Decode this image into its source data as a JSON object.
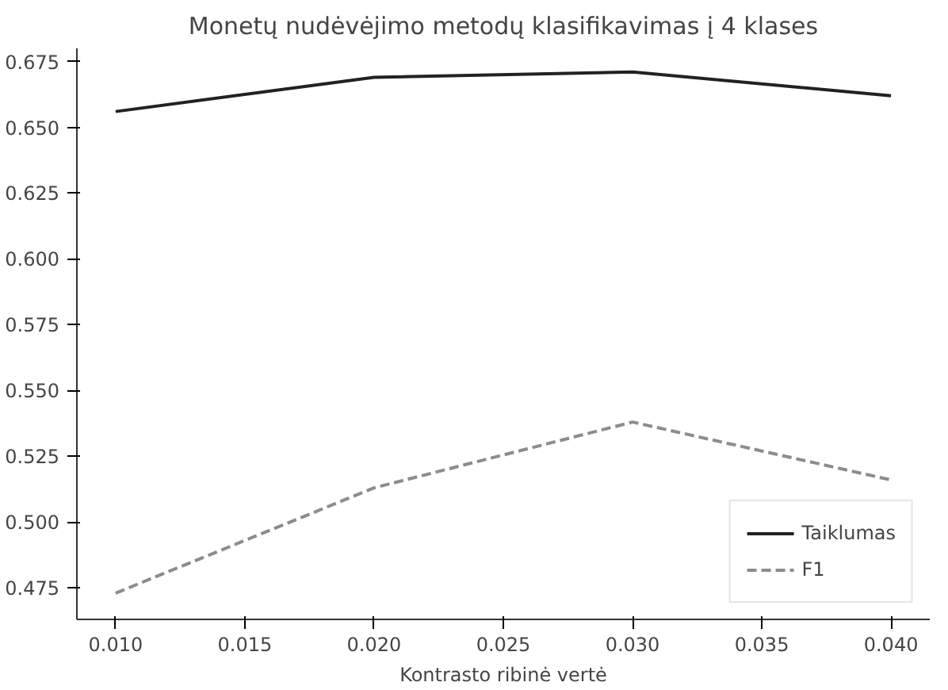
{
  "chart_data": {
    "type": "line",
    "title": "Monetų nudėvėjimo metodų klasifikavimas į 4 klases",
    "xlabel": "Kontrasto ribinė vertė",
    "x": [
      0.01,
      0.02,
      0.03,
      0.04
    ],
    "series": [
      {
        "name": "Taiklumas",
        "color": "#222222",
        "line_style": "solid",
        "values": [
          0.656,
          0.669,
          0.671,
          0.662
        ]
      },
      {
        "name": "F1",
        "color": "#8c8c8c",
        "line_style": "dashed",
        "values": [
          0.473,
          0.513,
          0.538,
          0.516
        ]
      }
    ],
    "xlim": [
      0.0085,
      0.0415
    ],
    "ylim": [
      0.463,
      0.68
    ],
    "xticks": [
      {
        "value": 0.01,
        "label": "0.010"
      },
      0.015,
      {
        "value": 0.02,
        "label": "0.020"
      },
      0.025,
      {
        "value": 0.03,
        "label": "0.030"
      },
      0.035,
      {
        "value": 0.04,
        "label": "0.040"
      }
    ],
    "yticks": [
      0.475,
      {
        "value": 0.5,
        "label": "0.500"
      },
      0.525,
      {
        "value": 0.55,
        "label": "0.550"
      },
      0.575,
      {
        "value": 0.6,
        "label": "0.600"
      },
      0.625,
      {
        "value": 0.65,
        "label": "0.650"
      },
      0.675
    ],
    "grid": false,
    "legend": "bottom right",
    "marker": "none"
  }
}
